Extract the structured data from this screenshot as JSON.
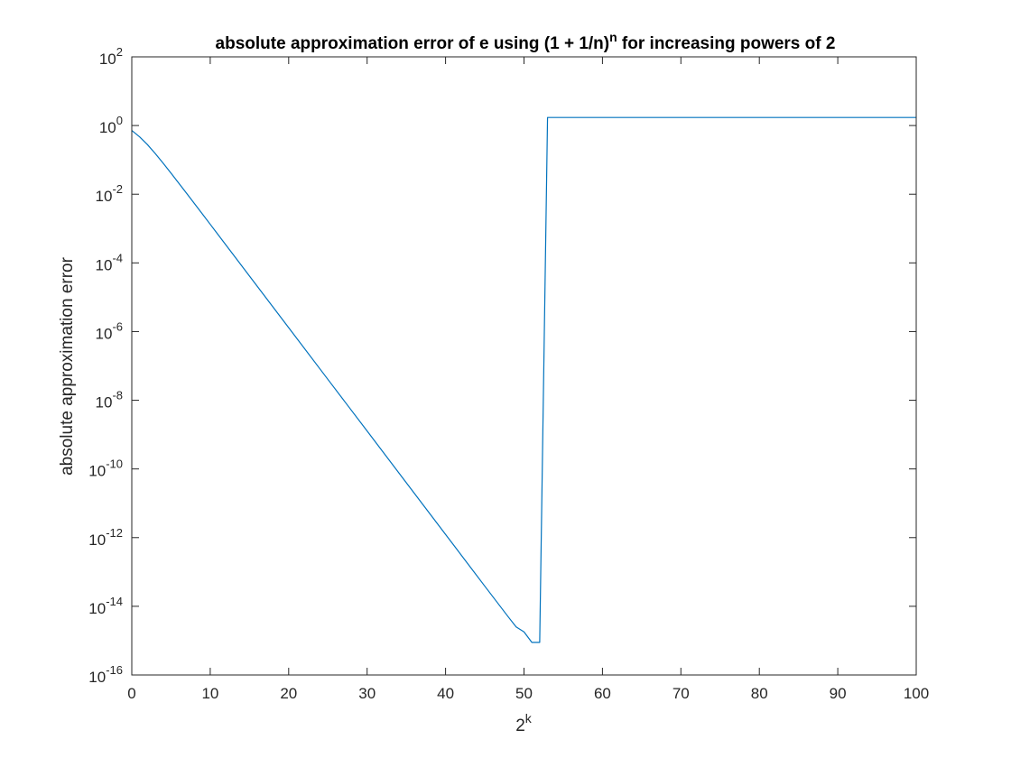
{
  "chart_data": {
    "type": "line",
    "title": {
      "prefix": "absolute approximation error of e using (1 + 1/n)",
      "superscript": "n",
      "suffix": " for increasing powers of 2"
    },
    "xlabel": {
      "base": "2",
      "superscript": "k"
    },
    "ylabel": "absolute approximation error",
    "yscale": "log",
    "xlim": [
      0,
      100
    ],
    "ylim": [
      1e-16,
      100
    ],
    "grid": false,
    "box": true,
    "x_ticks": [
      0,
      10,
      20,
      30,
      40,
      50,
      60,
      70,
      80,
      90,
      100
    ],
    "y_ticks": [
      {
        "value": 1e-16,
        "base": "10",
        "exp": "-16"
      },
      {
        "value": 1e-14,
        "base": "10",
        "exp": "-14"
      },
      {
        "value": 1e-12,
        "base": "10",
        "exp": "-12"
      },
      {
        "value": 1e-10,
        "base": "10",
        "exp": "-10"
      },
      {
        "value": 1e-08,
        "base": "10",
        "exp": "-8"
      },
      {
        "value": 1e-06,
        "base": "10",
        "exp": "-6"
      },
      {
        "value": 0.0001,
        "base": "10",
        "exp": "-4"
      },
      {
        "value": 0.01,
        "base": "10",
        "exp": "-2"
      },
      {
        "value": 1,
        "base": "10",
        "exp": "0"
      },
      {
        "value": 100,
        "base": "10",
        "exp": "2"
      }
    ],
    "series": [
      {
        "color": "#0072BD",
        "x": [
          0,
          1,
          2,
          3,
          4,
          5,
          6,
          7,
          8,
          9,
          10,
          12,
          15,
          20,
          25,
          30,
          35,
          40,
          45,
          48,
          49,
          50,
          51,
          52,
          53,
          60,
          70,
          80,
          90,
          100
        ],
        "y": [
          0.718,
          0.468,
          0.277,
          0.152,
          0.0799,
          0.041,
          0.0208,
          0.0105,
          0.00529,
          0.00265,
          0.00133,
          0.000332,
          4.15e-05,
          1.3e-06,
          4.05e-08,
          1.27e-09,
          3.96e-11,
          1.24e-12,
          3.86e-14,
          4.9e-15,
          2.5e-15,
          1.8e-15,
          8.9e-16,
          8.9e-16,
          1.718,
          1.718,
          1.718,
          1.718,
          1.718,
          1.718
        ]
      }
    ]
  }
}
